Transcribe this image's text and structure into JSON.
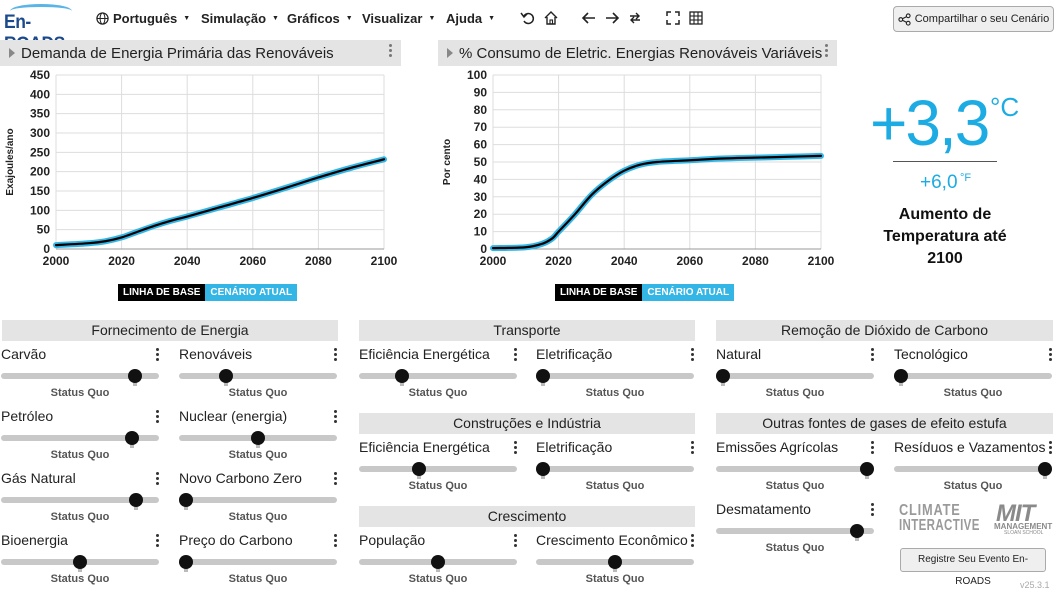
{
  "app": {
    "logo": "En-ROADS",
    "menus": [
      {
        "label": "Português",
        "icon": "globe-icon"
      },
      {
        "label": "Simulação"
      },
      {
        "label": "Gráficos"
      },
      {
        "label": "Visualizar"
      },
      {
        "label": "Ajuda"
      }
    ],
    "toolbar_icons": [
      "undo-icon",
      "home-icon",
      "back-arrow-icon",
      "forward-arrow-icon",
      "repeat-icon",
      "fullscreen-icon",
      "grid-icon"
    ],
    "share_label": "Compartilhar o seu Cenário",
    "register_label": "Registre Seu Evento En-ROADS",
    "version": "v25.3.1",
    "colors": {
      "baseline": "#000000",
      "current": "#33b5e5",
      "temperature": "#1cabe2"
    }
  },
  "charts": {
    "left": {
      "title": "Demanda de Energia Primária das Renováveis"
    },
    "right": {
      "title": "% Consumo de Eletric. Energias Renováveis Variáveis"
    },
    "legend_baseline": "LINHA DE BASE",
    "legend_current": "CENÁRIO ATUAL"
  },
  "chart_data": [
    {
      "type": "line",
      "title": "Demanda de Energia Primária das Renováveis",
      "xlabel": "",
      "ylabel": "Exajoules/ano",
      "xlim": [
        2000,
        2100
      ],
      "ylim": [
        0,
        450
      ],
      "xticks": [
        2000,
        2020,
        2040,
        2060,
        2080,
        2100
      ],
      "yticks": [
        0,
        50,
        100,
        150,
        200,
        250,
        300,
        350,
        400,
        450
      ],
      "grid": true,
      "series": [
        {
          "name": "LINHA DE BASE",
          "x": [
            2000,
            2010,
            2015,
            2020,
            2025,
            2030,
            2035,
            2040,
            2050,
            2060,
            2070,
            2080,
            2090,
            2100
          ],
          "values": [
            10,
            15,
            20,
            30,
            45,
            60,
            73,
            84,
            108,
            132,
            158,
            185,
            210,
            232
          ]
        },
        {
          "name": "CENÁRIO ATUAL",
          "x": [
            2000,
            2010,
            2015,
            2020,
            2025,
            2030,
            2035,
            2040,
            2050,
            2060,
            2070,
            2080,
            2090,
            2100
          ],
          "values": [
            10,
            15,
            20,
            30,
            45,
            60,
            73,
            84,
            108,
            132,
            158,
            185,
            210,
            232
          ]
        }
      ]
    },
    {
      "type": "line",
      "title": "% Consumo de Eletric. Energias Renováveis Variáveis",
      "xlabel": "",
      "ylabel": "Por cento",
      "xlim": [
        2000,
        2100
      ],
      "ylim": [
        0,
        100
      ],
      "xticks": [
        2000,
        2020,
        2040,
        2060,
        2080,
        2100
      ],
      "yticks": [
        0,
        10,
        20,
        30,
        40,
        50,
        60,
        70,
        80,
        90,
        100
      ],
      "grid": true,
      "series": [
        {
          "name": "LINHA DE BASE",
          "x": [
            2000,
            2010,
            2015,
            2018,
            2020,
            2025,
            2030,
            2035,
            2040,
            2045,
            2050,
            2060,
            2070,
            2080,
            2090,
            2100
          ],
          "values": [
            0.5,
            1,
            3,
            6,
            10,
            20,
            31,
            39,
            45,
            48.5,
            50,
            51,
            52,
            52.5,
            53,
            53.5
          ]
        },
        {
          "name": "CENÁRIO ATUAL",
          "x": [
            2000,
            2010,
            2015,
            2018,
            2020,
            2025,
            2030,
            2035,
            2040,
            2045,
            2050,
            2060,
            2070,
            2080,
            2090,
            2100
          ],
          "values": [
            0.5,
            1,
            3,
            6,
            10,
            20,
            31,
            39,
            45,
            48.5,
            50,
            51,
            52,
            52.5,
            53,
            53.5
          ]
        }
      ]
    }
  ],
  "temperature": {
    "value_c": "+3,3",
    "unit_c": "°C",
    "value_f": "+6,0",
    "unit_f": "°F",
    "label": "Aumento de Temperatura até 2100"
  },
  "sections": {
    "supply": "Fornecimento de Energia",
    "transport": "Transporte",
    "buildings": "Construções e Indústria",
    "growth": "Crescimento",
    "removal": "Remoção de Dióxido de Carbono",
    "other": "Outras fontes de gases de efeito estufa"
  },
  "sliders": {
    "carvao": {
      "label": "Carvão",
      "status": "Status Quo",
      "level": 0.88
    },
    "renovaveis": {
      "label": "Renováveis",
      "status": "Status Quo",
      "level": 0.28
    },
    "petroleo": {
      "label": "Petróleo",
      "status": "Status Quo",
      "level": 0.86
    },
    "nuclear": {
      "label": "Nuclear (energia)",
      "status": "Status Quo",
      "level": 0.5
    },
    "gas": {
      "label": "Gás Natural",
      "status": "Status Quo",
      "level": 0.89
    },
    "carbono_zero": {
      "label": "Novo Carbono Zero",
      "status": "Status Quo",
      "level": 0.0
    },
    "bioenergia": {
      "label": "Bioenergia",
      "status": "Status Quo",
      "level": 0.5
    },
    "preco_carbono": {
      "label": "Preço do Carbono",
      "status": "Status Quo",
      "level": 0.0
    },
    "transp_eficiencia": {
      "label": "Eficiência Energética",
      "status": "Status Quo",
      "level": 0.25
    },
    "transp_eletrificacao": {
      "label": "Eletrificação",
      "status": "Status Quo",
      "level": 0.0
    },
    "const_eficiencia": {
      "label": "Eficiência Energética",
      "status": "Status Quo",
      "level": 0.37
    },
    "const_eletrificacao": {
      "label": "Eletrificação",
      "status": "Status Quo",
      "level": 0.0
    },
    "populacao": {
      "label": "População",
      "status": "Status Quo",
      "level": 0.5
    },
    "crescimento_economico": {
      "label": "Crescimento Econômico",
      "status": "Status Quo",
      "level": 0.5
    },
    "remocao_natural": {
      "label": "Natural",
      "status": "Status Quo",
      "level": 0.0
    },
    "remocao_tecnologico": {
      "label": "Tecnológico",
      "status": "Status Quo",
      "level": 0.0
    },
    "agricolas": {
      "label": "Emissões Agrícolas",
      "status": "Status Quo",
      "level": 1.0
    },
    "residuos": {
      "label": "Resíduos e Vazamentos",
      "status": "Status Quo",
      "level": 1.0
    },
    "desmatamento": {
      "label": "Desmatamento",
      "status": "Status Quo",
      "level": 0.93
    }
  },
  "partners": {
    "climate_interactive_1": "CLIMATE",
    "climate_interactive_2": "INTERACTIVE",
    "mit_1": "MIT",
    "mit_2": "MANAGEMENT",
    "mit_3": "SLOAN SCHOOL"
  }
}
